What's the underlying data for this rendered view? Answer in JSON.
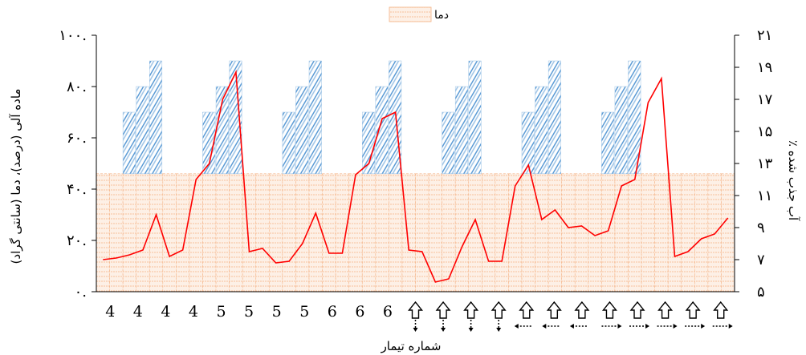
{
  "chart_data": {
    "type": "bar",
    "legend": {
      "position": "top",
      "entries": [
        {
          "label": "دما",
          "color": "#f4b183"
        }
      ]
    },
    "y_left": {
      "label": "ماده آلی (درصد)، دما (سانتی گراد)",
      "ticks": [
        "۰.",
        "۲۰.",
        "۴۰.",
        "۶۰.",
        "۸۰.",
        "۱۰۰."
      ],
      "ylim": [
        0,
        100
      ]
    },
    "y_right": {
      "label": "٪ آب جذب شده",
      "ticks": [
        "۵",
        "۷",
        "۹",
        "۱۱",
        "۱۳",
        "۱۵",
        "۱۷",
        "۱۹",
        "۲۱"
      ],
      "ylim": [
        5,
        21
      ]
    },
    "x_axis": {
      "label": "شماره تیمار"
    },
    "categories": [
      "4",
      "4",
      "4",
      "4",
      "5",
      "5",
      "5",
      "5",
      "6",
      "6",
      "6",
      "",
      "",
      "",
      "",
      "",
      "",
      "",
      "",
      "",
      "",
      "",
      ""
    ],
    "category_arrows": [
      "",
      "",
      "",
      "",
      "",
      "",
      "",
      "",
      "",
      "",
      "",
      "dot-down",
      "dot-down",
      "dot-down",
      "dot-down",
      "dot-left",
      "dot-left",
      "dot-left",
      "dot-right",
      "dot-right",
      "dot-right",
      "dot-right",
      "dot-right"
    ],
    "temperature_series": {
      "name": "دما",
      "color": "#f4b183",
      "values": [
        46,
        46,
        46,
        46,
        46,
        46,
        46,
        46,
        46,
        46,
        46,
        46,
        46,
        46,
        46,
        46,
        46,
        46,
        46,
        46,
        46,
        46,
        46,
        46,
        46,
        46,
        46,
        46,
        46,
        46,
        46,
        46,
        46,
        46,
        46,
        46,
        46,
        46,
        46,
        46,
        46,
        46,
        46,
        46,
        46,
        46,
        46,
        46
      ]
    },
    "organic_matter_groups": {
      "color": "#5b9bd5",
      "base": 46,
      "start_index": [
        2,
        8,
        14,
        20,
        26,
        32,
        38
      ],
      "values": [
        [
          70,
          80,
          90
        ],
        [
          70,
          80,
          90
        ],
        [
          70,
          80,
          90
        ],
        [
          70,
          80,
          90
        ],
        [
          70,
          80,
          90
        ],
        [
          70,
          80,
          90
        ],
        [
          70,
          80,
          90
        ]
      ]
    },
    "water_absorption_series": {
      "color": "#ff0000",
      "axis": "right",
      "values": [
        7.0,
        7.1,
        7.3,
        7.6,
        9.8,
        7.2,
        7.6,
        12.0,
        13.0,
        17.0,
        18.7,
        7.5,
        7.7,
        6.8,
        6.9,
        8.0,
        9.9,
        7.4,
        7.4,
        12.3,
        13.0,
        15.8,
        16.2,
        7.6,
        7.5,
        5.6,
        5.8,
        7.8,
        9.5,
        6.9,
        6.9,
        11.6,
        12.9,
        9.5,
        10.1,
        9.0,
        9.1,
        8.5,
        8.8,
        11.6,
        12.0,
        16.8,
        18.3,
        7.2,
        7.5,
        8.3,
        8.6,
        9.6
      ]
    }
  }
}
